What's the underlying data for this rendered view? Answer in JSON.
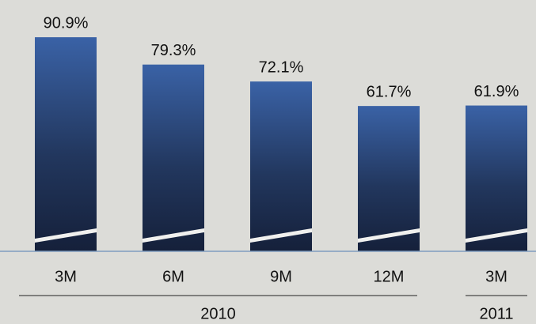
{
  "chart_data": {
    "type": "bar",
    "color": "#3a62a6",
    "groups": [
      {
        "label": "2010",
        "categories": [
          "3M",
          "6M",
          "9M",
          "12M"
        ],
        "values": [
          90.9,
          79.3,
          72.1,
          61.7
        ],
        "value_labels": [
          "90.9%",
          "79.3%",
          "72.1%",
          "61.7%"
        ]
      },
      {
        "label": "2011",
        "categories": [
          "3M"
        ],
        "values": [
          61.9
        ],
        "value_labels": [
          "61.9%"
        ]
      }
    ]
  }
}
